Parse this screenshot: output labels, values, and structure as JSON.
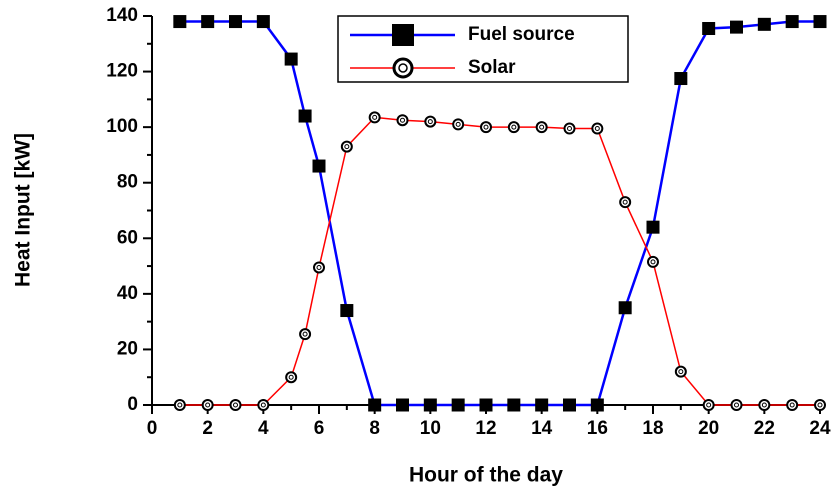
{
  "chart_data": {
    "type": "line",
    "x_label": "Hour of the day",
    "y_label": "Heat Input [kW]",
    "x": [
      1,
      2,
      3,
      4,
      5,
      5.5,
      6,
      7,
      8,
      9,
      10,
      11,
      12,
      13,
      14,
      15,
      16,
      17,
      18,
      19,
      20,
      21,
      22,
      23,
      24
    ],
    "series": [
      {
        "name": "Fuel source",
        "color": "#0000ff",
        "marker": "square",
        "values": [
          138,
          138,
          138,
          138,
          124.5,
          104,
          86,
          34,
          0,
          0,
          0,
          0,
          0,
          0,
          0,
          0,
          0,
          35,
          64,
          117.5,
          135.5,
          136,
          137,
          138,
          138
        ]
      },
      {
        "name": "Solar",
        "color": "#ff0000",
        "marker": "circle",
        "values": [
          0,
          0,
          0,
          0,
          10,
          25.5,
          49.5,
          93,
          103.5,
          102.5,
          102,
          101,
          100,
          100,
          100,
          99.5,
          99.5,
          73,
          51.5,
          12,
          0,
          0,
          0,
          0,
          0
        ]
      }
    ],
    "xlim": [
      0,
      24
    ],
    "xticks": [
      0,
      2,
      4,
      6,
      8,
      10,
      12,
      14,
      16,
      18,
      20,
      22,
      24
    ],
    "ylim": [
      0,
      140
    ],
    "yticks": [
      0,
      20,
      40,
      60,
      80,
      100,
      120,
      140
    ],
    "grid": false,
    "legend": "top"
  }
}
